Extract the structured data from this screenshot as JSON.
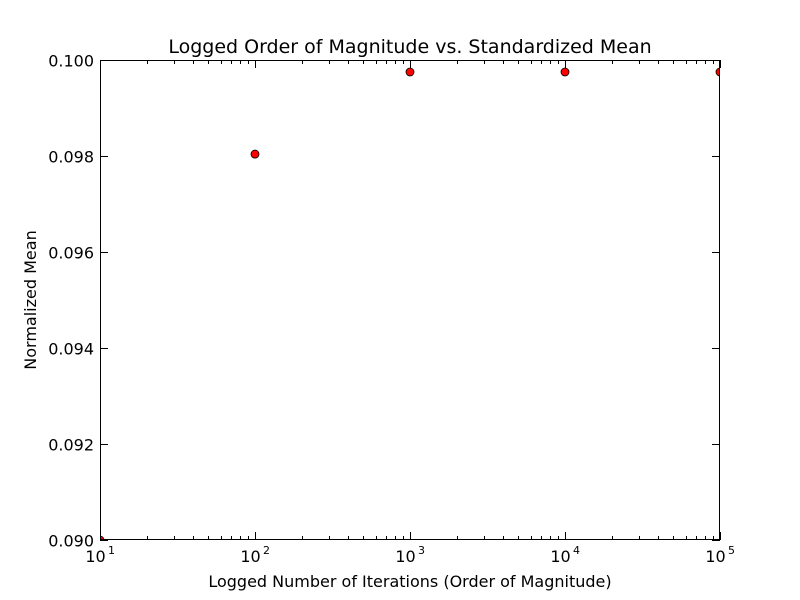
{
  "chart_data": {
    "type": "scatter",
    "title": "Logged Order of Magnitude vs. Standardized Mean",
    "xlabel": "Logged Number of Iterations (Order of Magnitude)",
    "ylabel": "Normalized Mean",
    "xscale": "log",
    "xlim": [
      10,
      100000
    ],
    "ylim": [
      0.09,
      0.1
    ],
    "x_ticks": [
      {
        "base": "10",
        "exp": "1",
        "value": 10
      },
      {
        "base": "10",
        "exp": "2",
        "value": 100
      },
      {
        "base": "10",
        "exp": "3",
        "value": 1000
      },
      {
        "base": "10",
        "exp": "4",
        "value": 10000
      },
      {
        "base": "10",
        "exp": "5",
        "value": 100000
      }
    ],
    "y_ticks": [
      {
        "label": "0.090",
        "value": 0.09
      },
      {
        "label": "0.092",
        "value": 0.092
      },
      {
        "label": "0.094",
        "value": 0.094
      },
      {
        "label": "0.096",
        "value": 0.096
      },
      {
        "label": "0.098",
        "value": 0.098
      },
      {
        "label": "0.100",
        "value": 0.1
      }
    ],
    "grid": false,
    "marker_color": "#ff0000",
    "series": [
      {
        "x": [
          10,
          100,
          1000,
          10000,
          100000
        ],
        "y": [
          0.09,
          0.09804,
          0.09975,
          0.09975,
          0.09975
        ]
      }
    ]
  }
}
